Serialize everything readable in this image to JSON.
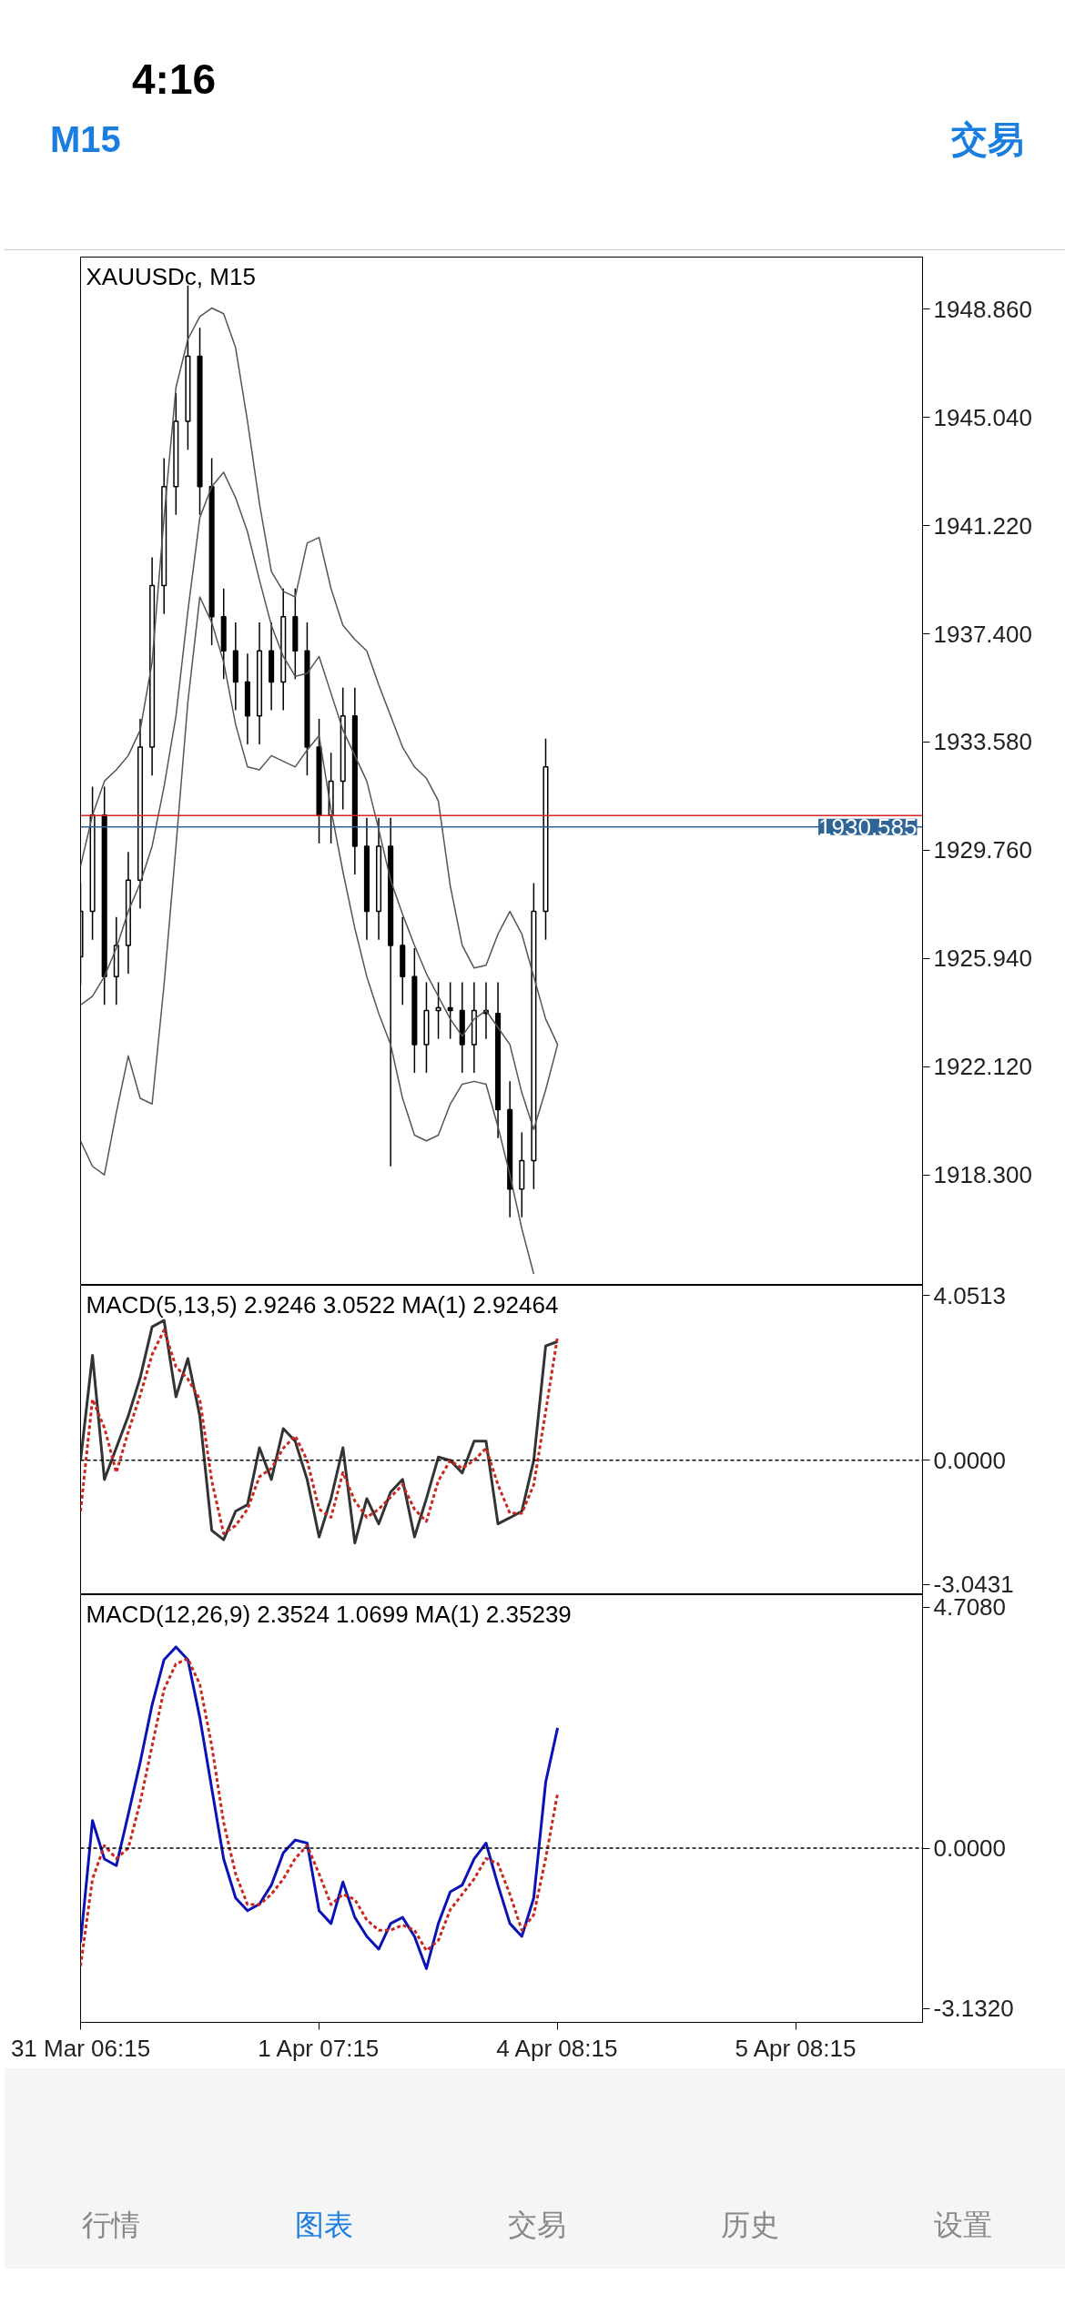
{
  "chart_data": [
    {
      "type": "candlestick",
      "title": "XAUUSDc, M15",
      "annotations": [
        "4:16",
        "M15",
        "交易"
      ],
      "categories": [
        null,
        null,
        null,
        null,
        null,
        null,
        null,
        null,
        null,
        null,
        null,
        null,
        null,
        null,
        null,
        null,
        null,
        null,
        null,
        null,
        null,
        null,
        null,
        null,
        null,
        null,
        null,
        null,
        null,
        null,
        null,
        null,
        null,
        null,
        null,
        null,
        null,
        null,
        null,
        null,
        null,
        null,
        null,
        null,
        null,
        null,
        null,
        null,
        null,
        null,
        null,
        null,
        null,
        null,
        null,
        null,
        null,
        null,
        null,
        null,
        null,
        null,
        null,
        null,
        null,
        null,
        null,
        null,
        null,
        null,
        null
      ],
      "ohlc": [
        [
          1926.0,
          1928.6,
          1925.0,
          1927.6
        ],
        [
          1927.6,
          1932.0,
          1926.6,
          1931.0
        ],
        [
          1931.0,
          1932.0,
          1924.3,
          1925.3
        ],
        [
          1925.3,
          1927.4,
          1924.3,
          1926.4
        ],
        [
          1926.4,
          1929.7,
          1925.4,
          1928.7
        ],
        [
          1928.7,
          1934.4,
          1927.7,
          1933.4
        ],
        [
          1933.4,
          1940.1,
          1932.4,
          1939.1
        ],
        [
          1939.1,
          1943.6,
          1938.1,
          1942.6
        ],
        [
          1942.6,
          1945.9,
          1941.6,
          1944.9
        ],
        [
          1944.9,
          1949.7,
          1943.9,
          1947.2
        ],
        [
          1947.2,
          1948.2,
          1941.6,
          1942.6
        ],
        [
          1942.6,
          1943.6,
          1937.0,
          1938.0
        ],
        [
          1938.0,
          1939.0,
          1935.8,
          1936.8
        ],
        [
          1936.8,
          1937.8,
          1934.7,
          1935.7
        ],
        [
          1935.7,
          1936.7,
          1933.5,
          1934.5
        ],
        [
          1934.5,
          1937.8,
          1933.5,
          1936.8
        ],
        [
          1936.8,
          1937.8,
          1934.7,
          1935.7
        ],
        [
          1935.7,
          1939.0,
          1934.7,
          1938.0
        ],
        [
          1938.0,
          1939.0,
          1935.8,
          1936.8
        ],
        [
          1936.8,
          1937.8,
          1932.4,
          1933.4
        ],
        [
          1933.4,
          1934.4,
          1930.0,
          1931.0
        ],
        [
          1931.0,
          1933.2,
          1930.0,
          1932.2
        ],
        [
          1932.2,
          1935.5,
          1931.2,
          1934.5
        ],
        [
          1934.5,
          1935.5,
          1928.9,
          1929.9
        ],
        [
          1929.9,
          1930.9,
          1926.6,
          1927.6
        ],
        [
          1927.6,
          1930.9,
          1926.6,
          1929.9
        ],
        [
          1929.9,
          1930.9,
          1918.6,
          1926.4
        ],
        [
          1926.4,
          1927.4,
          1924.3,
          1925.3
        ],
        [
          1925.3,
          1926.3,
          1921.9,
          1922.9
        ],
        [
          1922.9,
          1925.1,
          1921.9,
          1924.1
        ],
        [
          1924.1,
          1925.1,
          1923.1,
          1924.2
        ],
        [
          1924.2,
          1925.1,
          1923.1,
          1924.1
        ],
        [
          1924.1,
          1925.1,
          1921.9,
          1922.9
        ],
        [
          1922.9,
          1925.1,
          1921.9,
          1924.1
        ],
        [
          1924.1,
          1925.1,
          1923.1,
          1924.0
        ],
        [
          1924.0,
          1925.1,
          1919.6,
          1920.6
        ],
        [
          1920.6,
          1921.6,
          1916.8,
          1917.8
        ],
        [
          1917.8,
          1919.8,
          1916.8,
          1918.8
        ],
        [
          1918.8,
          1928.6,
          1917.8,
          1927.6
        ],
        [
          1927.6,
          1933.7,
          1926.6,
          1932.7
        ],
        null,
        null,
        null,
        null,
        null,
        null,
        null,
        null,
        null,
        null,
        null,
        null,
        null,
        null,
        null,
        null,
        null,
        null,
        null,
        null,
        null,
        null,
        null,
        null,
        null,
        null,
        null,
        null,
        null,
        null,
        null
      ],
      "series": [
        {
          "type": "line",
          "color": "#555555",
          "values": [
            1929.2,
            1931.0,
            1932.2,
            1932.6,
            1933.1,
            1934.0,
            1936.4,
            1941.5,
            1946.1,
            1947.8,
            1948.6,
            1948.9,
            1948.7,
            1947.5,
            1944.9,
            1942.0,
            1939.6,
            1938.9,
            1938.7,
            1940.6,
            1940.8,
            1939.0,
            1937.7,
            1937.2,
            1936.8,
            1935.6,
            1934.5,
            1933.4,
            1932.7,
            1932.3,
            1931.5,
            1928.5,
            1926.4,
            1925.6,
            1925.7,
            1926.8,
            1927.6,
            1926.8,
            1925.3,
            1923.8,
            1922.9,
            null,
            null,
            null,
            null,
            null,
            null,
            null,
            null,
            null,
            null,
            null,
            null,
            null,
            null,
            null,
            null,
            null,
            null,
            null,
            null,
            null,
            null,
            null,
            null,
            null,
            null,
            null,
            null,
            null,
            null
          ]
        },
        {
          "type": "line",
          "color": "#555555",
          "values": [
            1924.3,
            1924.6,
            1925.3,
            1926.3,
            1927.6,
            1928.6,
            1929.9,
            1932.0,
            1934.5,
            1938.2,
            1941.5,
            1942.6,
            1943.1,
            1942.2,
            1941.0,
            1939.3,
            1937.7,
            1936.6,
            1935.9,
            1936.0,
            1936.6,
            1935.3,
            1934.0,
            1933.1,
            1932.2,
            1930.5,
            1928.7,
            1927.5,
            1926.4,
            1925.4,
            1924.6,
            1923.8,
            1923.2,
            1923.8,
            1924.1,
            1923.5,
            1922.9,
            1921.2,
            1919.9,
            1921.3,
            1922.9,
            null,
            null,
            null,
            null,
            null,
            null,
            null,
            null,
            null,
            null,
            null,
            null,
            null,
            null,
            null,
            null,
            null,
            null,
            null,
            null,
            null,
            null,
            null,
            null,
            null,
            null,
            null,
            null,
            null,
            null
          ]
        },
        {
          "type": "line",
          "color": "#555555",
          "values": [
            1919.5,
            1918.6,
            1918.3,
            1920.5,
            1922.5,
            1921.0,
            1920.8,
            1925.0,
            1929.9,
            1935.0,
            1938.7,
            1937.8,
            1936.4,
            1934.2,
            1932.7,
            1932.6,
            1933.1,
            1932.9,
            1932.7,
            1933.3,
            1933.8,
            1931.2,
            1929.0,
            1927.0,
            1925.3,
            1924.0,
            1922.9,
            1921.0,
            1919.7,
            1919.5,
            1919.7,
            1920.8,
            1921.5,
            1921.6,
            1921.5,
            1920.0,
            1918.3,
            1916.4,
            1914.8,
            null,
            null,
            null,
            null,
            null,
            null,
            null,
            null,
            null,
            null,
            null,
            null,
            null,
            null,
            null,
            null,
            null,
            null,
            null,
            null,
            null,
            null,
            null,
            null,
            null,
            null,
            null,
            null,
            null,
            null,
            null,
            null
          ]
        }
      ],
      "ref_lines": [
        {
          "axis": "y",
          "value": 1930.985,
          "label": null,
          "color": "#e0231c"
        },
        {
          "axis": "y",
          "value": 1930.585,
          "label": "1930.585",
          "color": "#2f6496"
        }
      ],
      "ylim": [
        1914.4,
        1950.7
      ],
      "yticks": [
        {
          "value": 1948.86,
          "label": "1948.860"
        },
        {
          "value": 1945.04,
          "label": "1945.040"
        },
        {
          "value": 1941.22,
          "label": "1941.220"
        },
        {
          "value": 1937.4,
          "label": "1937.400"
        },
        {
          "value": 1933.58,
          "label": "1933.580"
        },
        {
          "value": 1929.76,
          "label": "1929.760"
        },
        {
          "value": 1925.94,
          "label": "1925.940"
        },
        {
          "value": 1922.12,
          "label": "1922.120"
        },
        {
          "value": 1918.3,
          "label": "1918.300"
        }
      ],
      "tick_labels": "y",
      "grid": false
    },
    {
      "type": "line",
      "title": "MACD(5,13,5) 2.9246 3.0522 MA(1) 2.92464",
      "categories": [
        null,
        null,
        null,
        null,
        null,
        null,
        null,
        null,
        null,
        null,
        null,
        null,
        null,
        null,
        null,
        null,
        null,
        null,
        null,
        null,
        null,
        null,
        null,
        null,
        null,
        null,
        null,
        null,
        null,
        null,
        null,
        null,
        null,
        null,
        null,
        null,
        null,
        null,
        null,
        null,
        null,
        null,
        null,
        null,
        null,
        null,
        null,
        null,
        null,
        null,
        null,
        null,
        null,
        null,
        null,
        null,
        null,
        null,
        null,
        null,
        null,
        null,
        null,
        null,
        null,
        null,
        null,
        null,
        null,
        null,
        null
      ],
      "series": [
        {
          "color": "#333333",
          "line_style": "solid",
          "values": [
            0,
            2.58,
            -0.47,
            0.31,
            1.09,
            2.03,
            3.28,
            3.44,
            1.56,
            2.5,
            1.09,
            -1.72,
            -1.95,
            -1.25,
            -1.09,
            0.31,
            -0.47,
            0.78,
            0.47,
            -0.47,
            -1.88,
            -0.94,
            0.31,
            -2.03,
            -0.94,
            -1.56,
            -0.78,
            -0.47,
            -1.88,
            -0.94,
            0.08,
            0,
            -0.31,
            0.47,
            0.47,
            -1.56,
            -1.41,
            -1.25,
            0,
            2.81,
            2.92,
            null,
            null,
            null,
            null,
            null,
            null,
            null,
            null,
            null,
            null,
            null,
            null,
            null,
            null,
            null,
            null,
            null,
            null,
            null,
            null,
            null,
            null,
            null,
            null,
            null,
            null,
            null,
            null,
            null,
            null
          ]
        },
        {
          "color": "#c8281e",
          "line_style": "dashed",
          "values": [
            -1.25,
            1.5,
            0.8,
            -0.3,
            0.7,
            1.6,
            2.6,
            3.2,
            2.3,
            2.0,
            1.5,
            -0.5,
            -1.8,
            -1.6,
            -1.2,
            -0.4,
            -0.2,
            0.3,
            0.6,
            0,
            -1.2,
            -1.4,
            -0.3,
            -1.0,
            -1.4,
            -1.2,
            -0.9,
            -0.6,
            -1.2,
            -1.5,
            -0.5,
            0,
            -0.2,
            0,
            0.3,
            -0.6,
            -1.3,
            -1.3,
            -0.6,
            1.2,
            3.05,
            null,
            null,
            null,
            null,
            null,
            null,
            null,
            null,
            null,
            null,
            null,
            null,
            null,
            null,
            null,
            null,
            null,
            null,
            null,
            null,
            null,
            null,
            null,
            null,
            null,
            null,
            null,
            null,
            null,
            null
          ]
        }
      ],
      "ref_lines": [
        {
          "axis": "y",
          "value": 0,
          "label": null,
          "color": "#000000",
          "line_style": "dashed"
        }
      ],
      "ylim": [
        -3.3,
        4.3
      ],
      "yticks": [
        {
          "value": 4.0513,
          "label": "4.0513"
        },
        {
          "value": 0,
          "label": "0.0000"
        },
        {
          "value": -3.0431,
          "label": "-3.0431"
        }
      ],
      "tick_labels": "y",
      "grid": false
    },
    {
      "type": "line",
      "title": "MACD(12,26,9) 2.3524 1.0699 MA(1) 2.35239",
      "annotations": [
        "行情",
        "图表",
        "交易",
        "历史",
        "设置"
      ],
      "categories": [
        "31 Mar 06:15",
        null,
        null,
        null,
        null,
        null,
        null,
        null,
        null,
        null,
        null,
        null,
        null,
        null,
        null,
        null,
        null,
        null,
        null,
        null,
        "1 Apr 07:15",
        null,
        null,
        null,
        null,
        null,
        null,
        null,
        null,
        null,
        null,
        null,
        null,
        null,
        null,
        null,
        null,
        null,
        null,
        null,
        "4 Apr 08:15",
        null,
        null,
        null,
        null,
        null,
        null,
        null,
        null,
        null,
        null,
        null,
        null,
        null,
        null,
        null,
        null,
        null,
        null,
        null,
        "5 Apr 08:15",
        null,
        null,
        null,
        null,
        null,
        null,
        null,
        null,
        null,
        null
      ],
      "series": [
        {
          "color": "#0a14b4",
          "line_style": "solid",
          "values": [
            -1.84,
            0.54,
            -0.21,
            -0.34,
            0.66,
            1.68,
            2.8,
            3.68,
            3.93,
            3.68,
            2.55,
            1.17,
            -0.21,
            -0.97,
            -1.22,
            -1.09,
            -0.72,
            -0.09,
            0.16,
            0.1,
            -1.22,
            -1.47,
            -0.66,
            -1.35,
            -1.72,
            -1.97,
            -1.47,
            -1.35,
            -1.72,
            -2.35,
            -1.47,
            -0.85,
            -0.72,
            -0.21,
            0.1,
            -0.72,
            -1.47,
            -1.72,
            -0.97,
            1.29,
            2.35,
            null,
            null,
            null,
            null,
            null,
            null,
            null,
            null,
            null,
            null,
            null,
            null,
            null,
            null,
            null,
            null,
            null,
            null,
            null,
            null,
            null,
            null,
            null,
            null,
            null,
            null,
            null,
            null,
            null,
            null
          ]
        },
        {
          "color": "#c8281e",
          "line_style": "dashed",
          "values": [
            -2.3,
            -0.6,
            0.05,
            -0.2,
            0,
            0.9,
            2.0,
            3.1,
            3.6,
            3.7,
            3.2,
            2.0,
            0.5,
            -0.5,
            -1.1,
            -1.1,
            -0.9,
            -0.6,
            -0.2,
            0.05,
            -0.5,
            -1.1,
            -0.9,
            -1.0,
            -1.4,
            -1.6,
            -1.6,
            -1.5,
            -1.6,
            -2.0,
            -1.8,
            -1.2,
            -0.9,
            -0.6,
            -0.2,
            -0.3,
            -0.9,
            -1.6,
            -1.3,
            -0.2,
            1.07,
            null,
            null,
            null,
            null,
            null,
            null,
            null,
            null,
            null,
            null,
            null,
            null,
            null,
            null,
            null,
            null,
            null,
            null,
            null,
            null,
            null,
            null,
            null,
            null,
            null,
            null,
            null,
            null,
            null,
            null
          ]
        }
      ],
      "ref_lines": [
        {
          "axis": "y",
          "value": 0,
          "label": null,
          "color": "#000000",
          "line_style": "dashed"
        }
      ],
      "ylim": [
        -3.4,
        4.95
      ],
      "yticks": [
        {
          "value": 4.708,
          "label": "4.7080"
        },
        {
          "value": 0,
          "label": "0.0000"
        },
        {
          "value": -3.132,
          "label": "-3.1320"
        }
      ],
      "grid": false
    }
  ]
}
